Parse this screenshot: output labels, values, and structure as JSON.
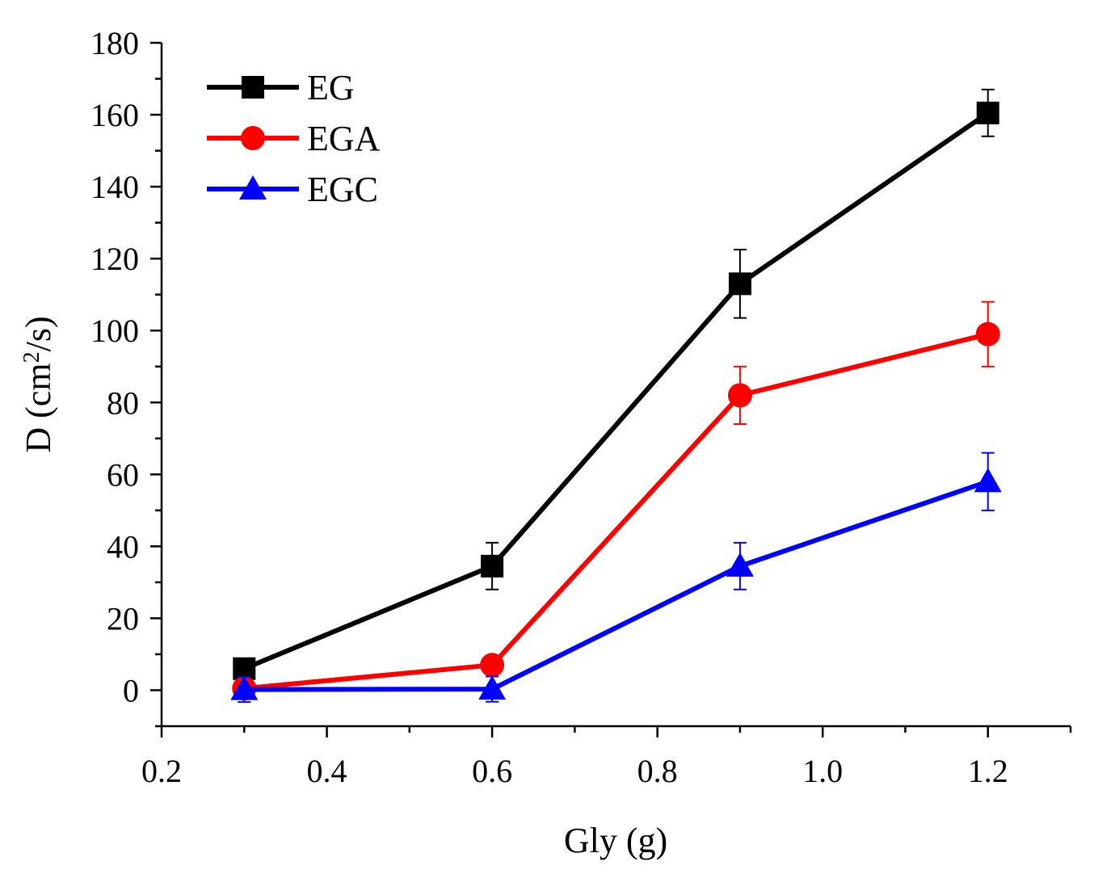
{
  "chart_data": {
    "type": "line",
    "title": "",
    "xlabel": "Gly (g)",
    "ylabel_main": "D (cm",
    "ylabel_sup": "2",
    "ylabel_tail": "/s)",
    "xlim": [
      0.2,
      1.3
    ],
    "ylim": [
      -10,
      180
    ],
    "x_ticks": [
      0.2,
      0.4,
      0.6,
      0.8,
      1.0,
      1.2
    ],
    "x_tick_labels": [
      "0.2",
      "0.4",
      "0.6",
      "0.8",
      "1.0",
      "1.2"
    ],
    "y_ticks": [
      0,
      20,
      40,
      60,
      80,
      100,
      120,
      140,
      160,
      180
    ],
    "y_tick_labels": [
      "0",
      "20",
      "40",
      "60",
      "80",
      "100",
      "120",
      "140",
      "160",
      "180"
    ],
    "x": [
      0.3,
      0.6,
      0.9,
      1.2
    ],
    "legend_position": "top-left",
    "series": [
      {
        "name": "EG",
        "color": "#000000",
        "marker": "square",
        "values": [
          6,
          34.5,
          113,
          160.5
        ],
        "errors": [
          0,
          6.5,
          9.5,
          6.5
        ]
      },
      {
        "name": "EGA",
        "color": "#ff0000",
        "marker": "circle",
        "values": [
          0.5,
          7,
          82,
          99
        ],
        "errors": [
          0,
          0,
          8,
          9
        ]
      },
      {
        "name": "EGC",
        "color": "#0000ff",
        "marker": "triangle",
        "values": [
          0.2,
          0.3,
          34.5,
          58
        ],
        "errors": [
          3.5,
          3.5,
          6.5,
          8
        ]
      }
    ]
  }
}
